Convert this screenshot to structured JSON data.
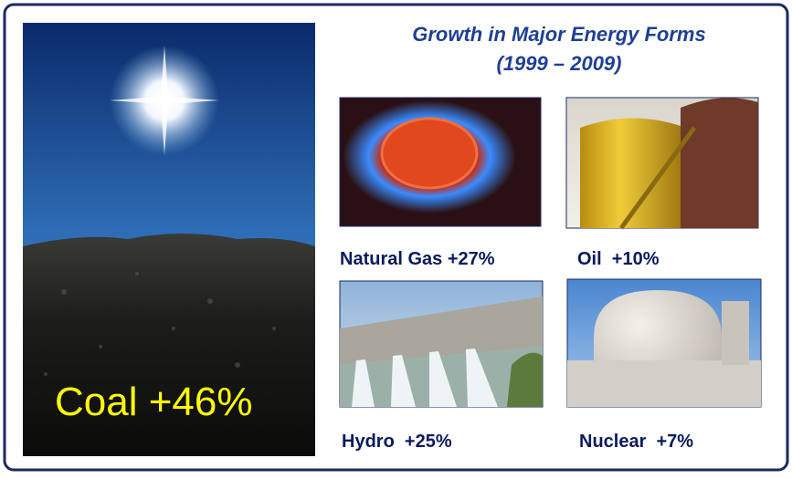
{
  "title": {
    "line1": "Growth in Major Energy Forms",
    "line2": "(1999 – 2009)"
  },
  "panels": [
    {
      "label": "Coal +46%"
    },
    {
      "label": "Natural Gas +27%"
    },
    {
      "label": "Oil  +10%"
    },
    {
      "label": "Hydro  +25%"
    },
    {
      "label": "Nuclear  +7%"
    }
  ]
}
